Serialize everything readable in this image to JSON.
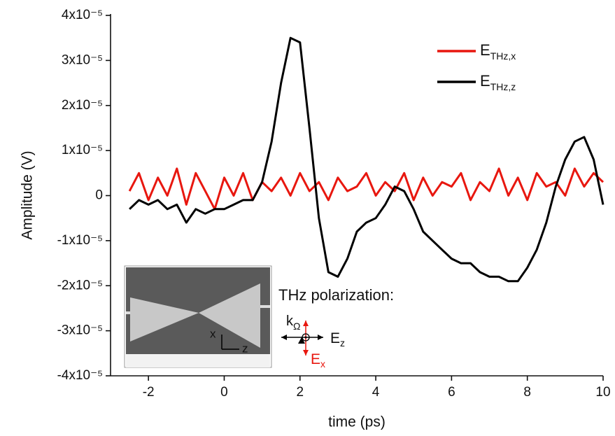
{
  "chart_data": {
    "type": "line",
    "x_label": "time (ps)",
    "y_label": "Amplitude (V)",
    "x": [
      -2.5,
      -2.25,
      -2.0,
      -1.75,
      -1.5,
      -1.25,
      -1.0,
      -0.75,
      -0.5,
      -0.25,
      0,
      0.25,
      0.5,
      0.75,
      1.0,
      1.25,
      1.5,
      1.75,
      2.0,
      2.25,
      2.5,
      2.75,
      3.0,
      3.25,
      3.5,
      3.75,
      4.0,
      4.25,
      4.5,
      4.75,
      5.0,
      5.25,
      5.5,
      5.75,
      6.0,
      6.25,
      6.5,
      6.75,
      7.0,
      7.25,
      7.5,
      7.75,
      8.0,
      8.25,
      8.5,
      8.75,
      9.0,
      9.25,
      9.5,
      9.75,
      10.0
    ],
    "series": [
      {
        "name": "ETHz,x",
        "color": "#e8170f",
        "values": [
          1e-06,
          5e-06,
          -1e-06,
          4e-06,
          0,
          6e-06,
          -2e-06,
          5e-06,
          1e-06,
          -3e-06,
          4e-06,
          0,
          5e-06,
          -1e-06,
          3e-06,
          1e-06,
          4e-06,
          0,
          5e-06,
          1e-06,
          3e-06,
          -1e-06,
          4e-06,
          1e-06,
          2e-06,
          5e-06,
          0,
          3e-06,
          1e-06,
          5e-06,
          -1e-06,
          4e-06,
          0,
          3e-06,
          2e-06,
          5e-06,
          -1e-06,
          3e-06,
          1e-06,
          6e-06,
          0,
          4e-06,
          -1e-06,
          5e-06,
          2e-06,
          3e-06,
          0,
          6e-06,
          2e-06,
          5e-06,
          3e-06
        ]
      },
      {
        "name": "ETHz,z",
        "color": "#000000",
        "values": [
          -3e-06,
          -1e-06,
          -2e-06,
          -1e-06,
          -3e-06,
          -2e-06,
          -6e-06,
          -3e-06,
          -4e-06,
          -3e-06,
          -3e-06,
          -2e-06,
          -1e-06,
          -1e-06,
          3e-06,
          1.2e-05,
          2.5e-05,
          3.5e-05,
          3.4e-05,
          1.5e-05,
          -5e-06,
          -1.7e-05,
          -1.8e-05,
          -1.4e-05,
          -8e-06,
          -6e-06,
          -5e-06,
          -2e-06,
          2e-06,
          1e-06,
          -3e-06,
          -8e-06,
          -1e-05,
          -1.2e-05,
          -1.4e-05,
          -1.5e-05,
          -1.5e-05,
          -1.7e-05,
          -1.8e-05,
          -1.8e-05,
          -1.9e-05,
          -1.9e-05,
          -1.6e-05,
          -1.2e-05,
          -6e-06,
          2e-06,
          8e-06,
          1.2e-05,
          1.3e-05,
          8e-06,
          -2e-06
        ]
      }
    ],
    "xlim": [
      -3,
      10
    ],
    "xticks": [
      -2,
      0,
      2,
      4,
      6,
      8,
      10
    ],
    "ylim": [
      -4e-05,
      4e-05
    ],
    "yticks": [
      {
        "value": -4e-05,
        "label": "-4x10⁻⁵"
      },
      {
        "value": -3e-05,
        "label": "-3x10⁻⁵"
      },
      {
        "value": -2e-05,
        "label": "-2x10⁻⁵"
      },
      {
        "value": -1e-05,
        "label": "-1x10⁻⁵"
      },
      0,
      {
        "value": 1e-05,
        "label": "1x10⁻⁵"
      },
      {
        "value": 2e-05,
        "label": "2x10⁻⁵"
      },
      {
        "value": 3e-05,
        "label": "3x10⁻⁵"
      },
      {
        "value": 4e-05,
        "label": "4x10⁻⁵"
      }
    ],
    "legend": "upper right",
    "annotations": [
      "THz polarization:",
      "kΩ",
      "Ez",
      "Ex",
      "x",
      "z"
    ]
  }
}
